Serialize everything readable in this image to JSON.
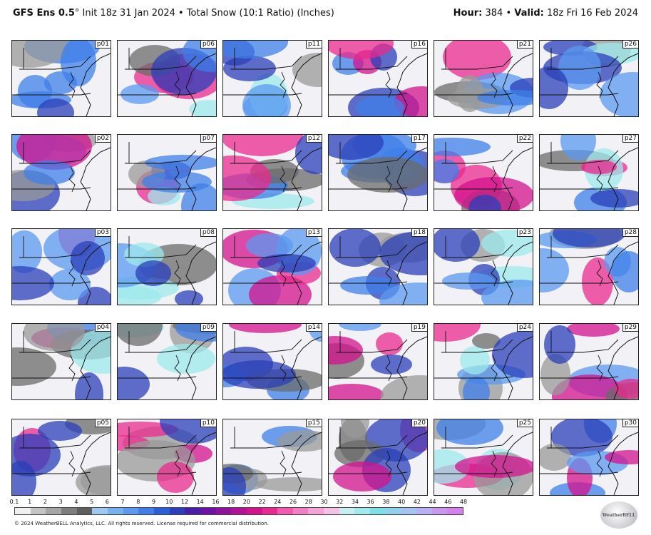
{
  "header": {
    "model": "GFS Ens 0.5",
    "degree": "°",
    "init": "Init 18z 31 Jan 2024",
    "sep": "•",
    "product": "Total Snow (10:1 Ratio) (Inches)",
    "hour_label": "Hour:",
    "hour_value": "384",
    "valid_label": "Valid:",
    "valid_value": "18z Fri 16 Feb 2024"
  },
  "members": [
    [
      "p01",
      "p06",
      "p11",
      "p16",
      "p21",
      "p26"
    ],
    [
      "p02",
      "p07",
      "p12",
      "p17",
      "p22",
      "p27"
    ],
    [
      "p03",
      "p08",
      "p13",
      "p18",
      "p23",
      "p28"
    ],
    [
      "p04",
      "p09",
      "p14",
      "p19",
      "p24",
      "p29"
    ],
    [
      "p05",
      "p10",
      "p15",
      "p20",
      "p25",
      "p30"
    ]
  ],
  "colorbar": {
    "ticks": [
      "0.1",
      "1",
      "2",
      "3",
      "4",
      "5",
      "6",
      "7",
      "8",
      "9",
      "10",
      "12",
      "14",
      "16",
      "18",
      "20",
      "22",
      "24",
      "26",
      "28",
      "30",
      "32",
      "34",
      "36",
      "38",
      "40",
      "42",
      "44",
      "46",
      "48"
    ],
    "colors": [
      "#f0f0f0",
      "#c4c4c4",
      "#a6a6a6",
      "#7e7e7e",
      "#5e5e5e",
      "#9ec9f0",
      "#78b2ee",
      "#5b9af0",
      "#3f7fe8",
      "#2b5fd6",
      "#2a3fb8",
      "#4a1fa8",
      "#6d12a6",
      "#90129c",
      "#b21296",
      "#d4128e",
      "#ea2a8e",
      "#f25ab0",
      "#f47ec4",
      "#f6a2d6",
      "#f3c2e4",
      "#c7eef0",
      "#9eeaec",
      "#7ce0e6",
      "#8ed2ee",
      "#a6c4f2",
      "#b8b0f2",
      "#c898f0",
      "#d480ee"
    ],
    "logo_text": "WeatherBELL"
  },
  "footer": "© 2024 WeatherBELL Analytics, LLC. All rights reserved. License required for commercial distribution."
}
